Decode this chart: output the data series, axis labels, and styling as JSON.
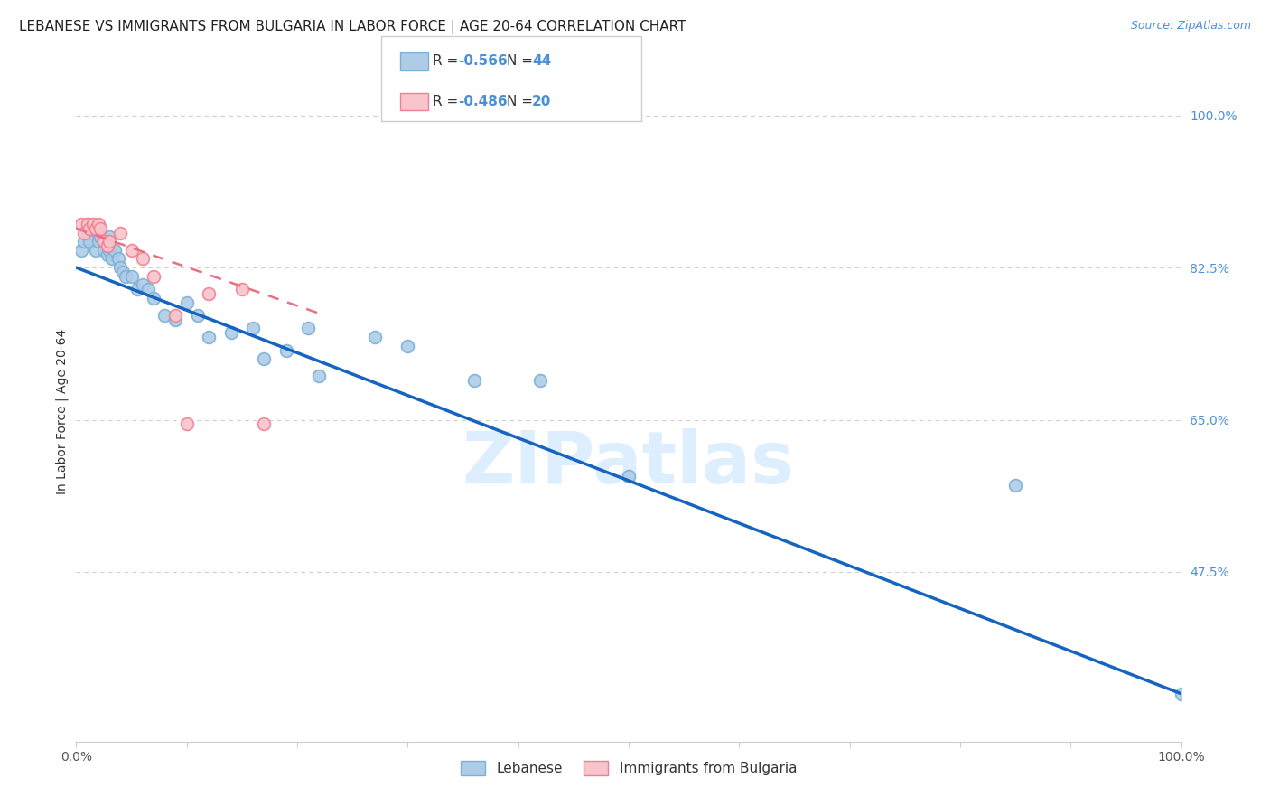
{
  "title": "LEBANESE VS IMMIGRANTS FROM BULGARIA IN LABOR FORCE | AGE 20-64 CORRELATION CHART",
  "source": "Source: ZipAtlas.com",
  "ylabel": "In Labor Force | Age 20-64",
  "xlim": [
    0.0,
    1.0
  ],
  "ylim": [
    0.28,
    1.04
  ],
  "x_tick_positions": [
    0.0,
    0.1,
    0.2,
    0.3,
    0.4,
    0.5,
    0.6,
    0.7,
    0.8,
    0.9,
    1.0
  ],
  "x_tick_labels": [
    "0.0%",
    "",
    "",
    "",
    "",
    "",
    "",
    "",
    "",
    "",
    "100.0%"
  ],
  "y_tick_positions_right": [
    1.0,
    0.825,
    0.65,
    0.475
  ],
  "y_tick_labels_right": [
    "100.0%",
    "82.5%",
    "65.0%",
    "47.5%"
  ],
  "legend1_R": "-0.566",
  "legend1_N": "44",
  "legend2_R": "-0.486",
  "legend2_N": "20",
  "legend_label1": "Lebanese",
  "legend_label2": "Immigrants from Bulgaria",
  "blue_scatter_x": [
    0.005,
    0.007,
    0.01,
    0.01,
    0.012,
    0.015,
    0.018,
    0.02,
    0.02,
    0.022,
    0.025,
    0.025,
    0.028,
    0.03,
    0.03,
    0.032,
    0.035,
    0.038,
    0.04,
    0.042,
    0.045,
    0.05,
    0.055,
    0.06,
    0.065,
    0.07,
    0.08,
    0.09,
    0.1,
    0.11,
    0.12,
    0.14,
    0.16,
    0.17,
    0.19,
    0.21,
    0.22,
    0.27,
    0.3,
    0.36,
    0.42,
    0.5,
    0.85,
    1.0
  ],
  "blue_scatter_y": [
    0.845,
    0.855,
    0.865,
    0.875,
    0.855,
    0.87,
    0.845,
    0.87,
    0.855,
    0.86,
    0.855,
    0.845,
    0.84,
    0.845,
    0.86,
    0.835,
    0.845,
    0.835,
    0.825,
    0.82,
    0.815,
    0.815,
    0.8,
    0.805,
    0.8,
    0.79,
    0.77,
    0.765,
    0.785,
    0.77,
    0.745,
    0.75,
    0.755,
    0.72,
    0.73,
    0.755,
    0.7,
    0.745,
    0.735,
    0.695,
    0.695,
    0.585,
    0.575,
    0.335
  ],
  "pink_scatter_x": [
    0.005,
    0.007,
    0.01,
    0.012,
    0.015,
    0.018,
    0.02,
    0.022,
    0.025,
    0.028,
    0.03,
    0.04,
    0.05,
    0.06,
    0.07,
    0.09,
    0.1,
    0.12,
    0.15,
    0.17
  ],
  "pink_scatter_y": [
    0.875,
    0.865,
    0.875,
    0.87,
    0.875,
    0.87,
    0.875,
    0.87,
    0.855,
    0.85,
    0.855,
    0.865,
    0.845,
    0.835,
    0.815,
    0.77,
    0.645,
    0.795,
    0.8,
    0.645
  ],
  "blue_line_x": [
    0.0,
    1.0
  ],
  "blue_line_y": [
    0.825,
    0.335
  ],
  "pink_line_x": [
    0.0,
    0.225
  ],
  "pink_line_y": [
    0.87,
    0.77
  ],
  "scatter_size": 100,
  "blue_scatter_color": "#aecce8",
  "blue_scatter_edge": "#7ab0d4",
  "pink_scatter_color": "#f9c4cc",
  "pink_scatter_edge": "#f08090",
  "blue_line_color": "#1565c0",
  "pink_line_color": "#e87080",
  "grid_color": "#d0d0d0",
  "bg_color": "#ffffff",
  "watermark_text": "ZIPatlas",
  "watermark_color": "#ddeeff",
  "title_fontsize": 11,
  "source_fontsize": 9,
  "axis_label_fontsize": 10,
  "tick_fontsize": 10,
  "legend_fontsize": 11
}
